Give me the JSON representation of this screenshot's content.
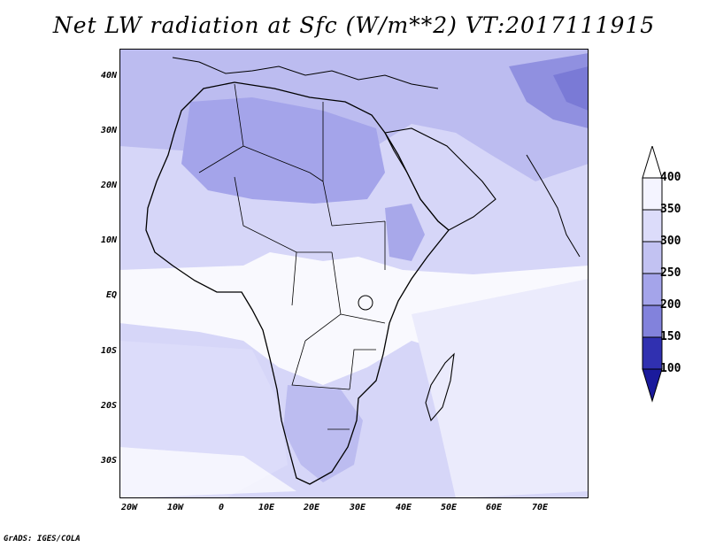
{
  "title": "Net LW radiation at Sfc (W/m**2) VT:2017111915",
  "credit": "GrADS: IGES/COLA",
  "map": {
    "lat_labels": [
      "40N",
      "30N",
      "20N",
      "10N",
      "EQ",
      "10S",
      "20S",
      "30S"
    ],
    "lon_labels": [
      "20W",
      "10W",
      "0",
      "10E",
      "20E",
      "30E",
      "40E",
      "50E",
      "60E",
      "70E"
    ],
    "lat_range": [
      -37,
      45
    ],
    "lon_range": [
      -23,
      80
    ]
  },
  "legend": {
    "labels": [
      "400",
      "350",
      "300",
      "250",
      "200",
      "150",
      "100"
    ],
    "colors": [
      "#f4f4ff",
      "#dcdcfa",
      "#c2c2f2",
      "#a4a4ea",
      "#8282dc",
      "#5858c8",
      "#3030b0"
    ],
    "arrow_top_color": "#ffffff",
    "arrow_bottom_color": "#1a1a9c"
  },
  "palette": {
    "white": "#ffffff",
    "lightest": "#ebebfc",
    "light": "#d6d6f8",
    "mid": "#bcbcf0",
    "dark": "#9f9fe6",
    "darker": "#8585da"
  }
}
